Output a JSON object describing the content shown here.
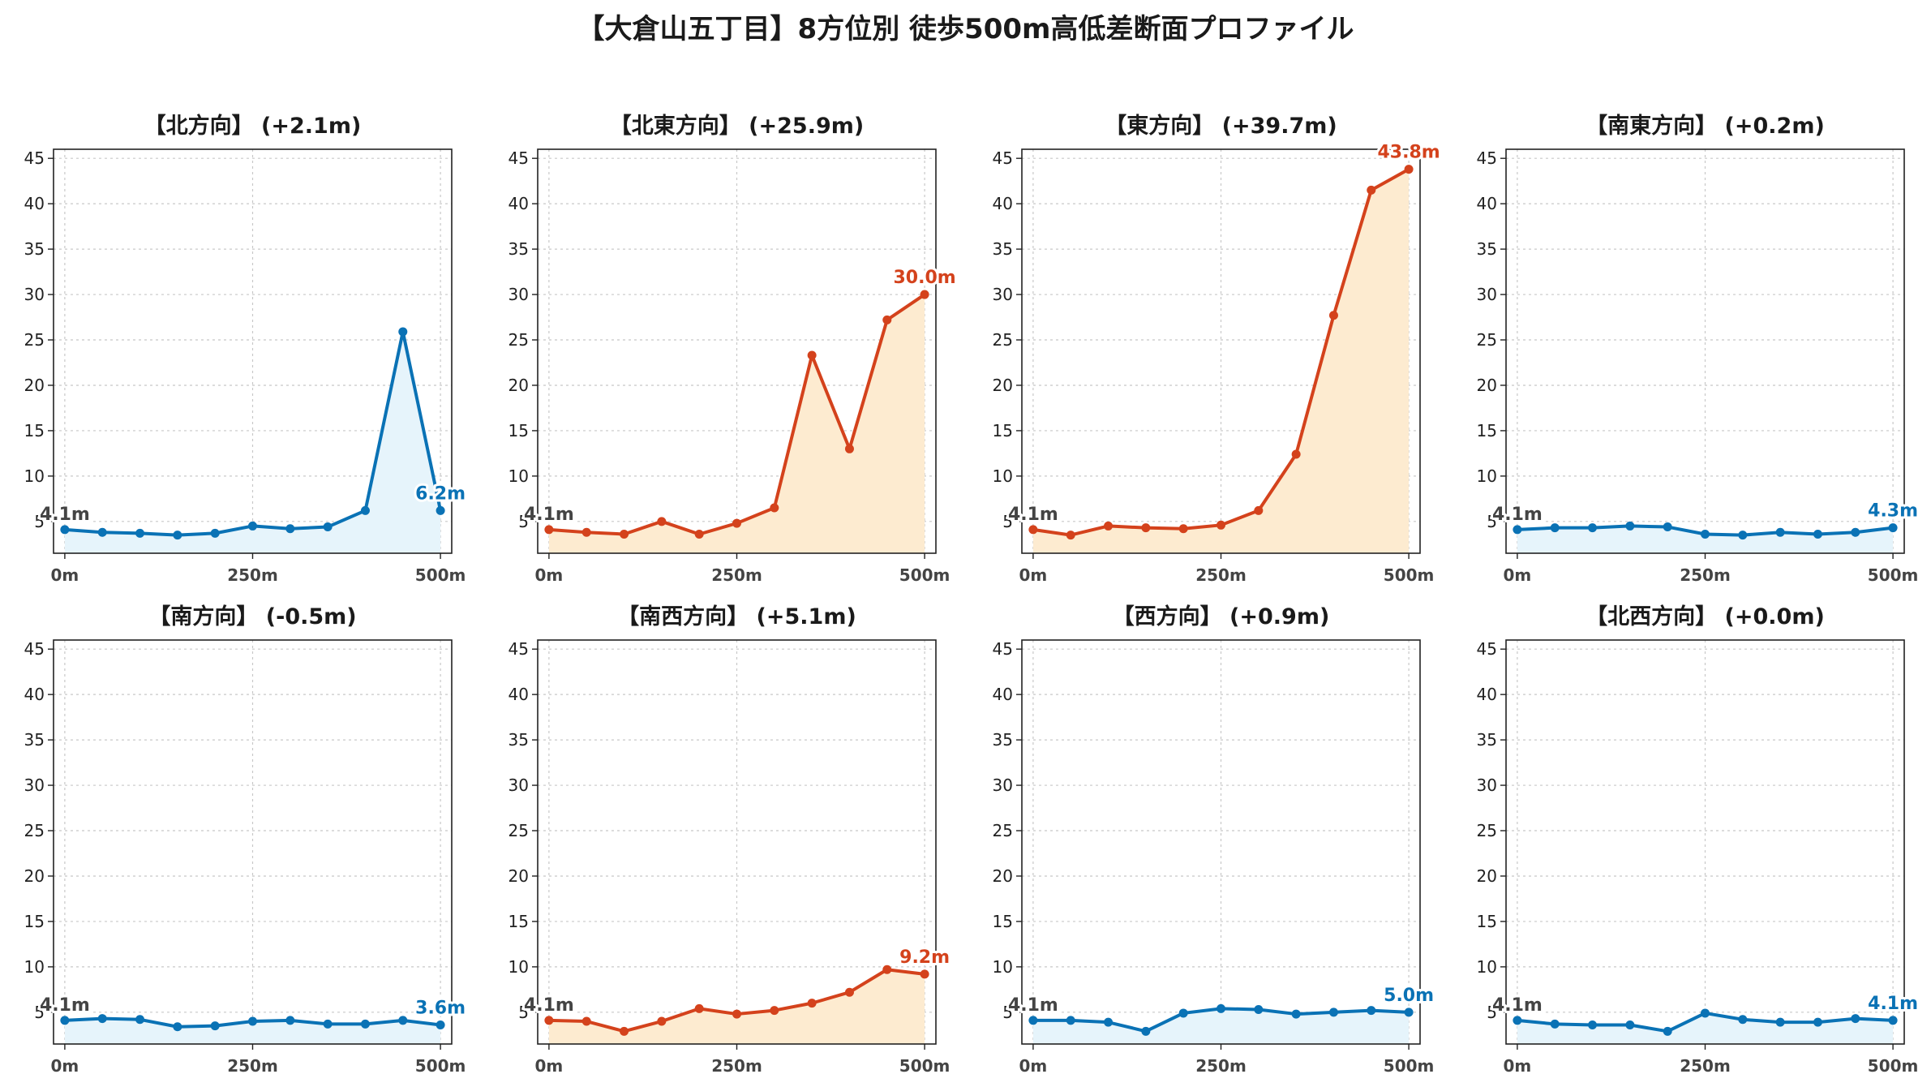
{
  "title": "【大倉山五丁目】8方位別 徒歩500m高低差断面プロファイル",
  "colors": {
    "up_line": "#d4421c",
    "up_fill": "#fdebd0",
    "flat_line": "#0a72b5",
    "flat_fill": "#e6f4fb",
    "start_label": "#444444",
    "grid": "#c8c8c8"
  },
  "chart_data": [
    {
      "type": "area",
      "title": "【北方向】 (+2.1m)",
      "x": [
        0,
        50,
        100,
        150,
        200,
        250,
        300,
        350,
        400,
        450,
        500
      ],
      "values": [
        4.1,
        3.8,
        3.7,
        3.5,
        3.7,
        4.5,
        4.2,
        4.4,
        6.2,
        25.9,
        6.2
      ],
      "xticks": [
        "0m",
        "250m",
        "500m"
      ],
      "yticks": [
        5,
        10,
        15,
        20,
        25,
        30,
        35,
        40,
        45
      ],
      "ylim": [
        1.5,
        46
      ],
      "xlim": [
        -15,
        515
      ],
      "start_label": "4.1m",
      "end_label": "6.2m",
      "trend": "flat",
      "grid": true
    },
    {
      "type": "area",
      "title": "【北東方向】 (+25.9m)",
      "x": [
        0,
        50,
        100,
        150,
        200,
        250,
        300,
        350,
        400,
        450,
        500
      ],
      "values": [
        4.1,
        3.8,
        3.6,
        5.0,
        3.6,
        4.8,
        6.5,
        23.3,
        13.0,
        27.2,
        30.0
      ],
      "xticks": [
        "0m",
        "250m",
        "500m"
      ],
      "yticks": [
        5,
        10,
        15,
        20,
        25,
        30,
        35,
        40,
        45
      ],
      "ylim": [
        1.5,
        46
      ],
      "xlim": [
        -15,
        515
      ],
      "start_label": "4.1m",
      "end_label": "30.0m",
      "trend": "up",
      "grid": true
    },
    {
      "type": "area",
      "title": "【東方向】 (+39.7m)",
      "x": [
        0,
        50,
        100,
        150,
        200,
        250,
        300,
        350,
        400,
        450,
        500
      ],
      "values": [
        4.1,
        3.5,
        4.5,
        4.3,
        4.2,
        4.6,
        6.2,
        12.4,
        27.7,
        41.5,
        43.8
      ],
      "xticks": [
        "0m",
        "250m",
        "500m"
      ],
      "yticks": [
        5,
        10,
        15,
        20,
        25,
        30,
        35,
        40,
        45
      ],
      "ylim": [
        1.5,
        46
      ],
      "xlim": [
        -15,
        515
      ],
      "start_label": "4.1m",
      "end_label": "43.8m",
      "trend": "up",
      "grid": true
    },
    {
      "type": "area",
      "title": "【南東方向】 (+0.2m)",
      "x": [
        0,
        50,
        100,
        150,
        200,
        250,
        300,
        350,
        400,
        450,
        500
      ],
      "values": [
        4.1,
        4.3,
        4.3,
        4.5,
        4.4,
        3.6,
        3.5,
        3.8,
        3.6,
        3.8,
        4.3
      ],
      "xticks": [
        "0m",
        "250m",
        "500m"
      ],
      "yticks": [
        5,
        10,
        15,
        20,
        25,
        30,
        35,
        40,
        45
      ],
      "ylim": [
        1.5,
        46
      ],
      "xlim": [
        -15,
        515
      ],
      "start_label": "4.1m",
      "end_label": "4.3m",
      "trend": "flat",
      "grid": true
    },
    {
      "type": "area",
      "title": "【南方向】 (-0.5m)",
      "x": [
        0,
        50,
        100,
        150,
        200,
        250,
        300,
        350,
        400,
        450,
        500
      ],
      "values": [
        4.1,
        4.3,
        4.2,
        3.4,
        3.5,
        4.0,
        4.1,
        3.7,
        3.7,
        4.1,
        3.6
      ],
      "xticks": [
        "0m",
        "250m",
        "500m"
      ],
      "yticks": [
        5,
        10,
        15,
        20,
        25,
        30,
        35,
        40,
        45
      ],
      "ylim": [
        1.5,
        46
      ],
      "xlim": [
        -15,
        515
      ],
      "start_label": "4.1m",
      "end_label": "3.6m",
      "trend": "flat",
      "grid": true
    },
    {
      "type": "area",
      "title": "【南西方向】 (+5.1m)",
      "x": [
        0,
        50,
        100,
        150,
        200,
        250,
        300,
        350,
        400,
        450,
        500
      ],
      "values": [
        4.1,
        4.0,
        2.9,
        4.0,
        5.4,
        4.8,
        5.2,
        6.0,
        7.2,
        9.7,
        9.2
      ],
      "xticks": [
        "0m",
        "250m",
        "500m"
      ],
      "yticks": [
        5,
        10,
        15,
        20,
        25,
        30,
        35,
        40,
        45
      ],
      "ylim": [
        1.5,
        46
      ],
      "xlim": [
        -15,
        515
      ],
      "start_label": "4.1m",
      "end_label": "9.2m",
      "trend": "up",
      "grid": true
    },
    {
      "type": "area",
      "title": "【西方向】 (+0.9m)",
      "x": [
        0,
        50,
        100,
        150,
        200,
        250,
        300,
        350,
        400,
        450,
        500
      ],
      "values": [
        4.1,
        4.1,
        3.9,
        2.9,
        4.9,
        5.4,
        5.3,
        4.8,
        5.0,
        5.2,
        5.0
      ],
      "xticks": [
        "0m",
        "250m",
        "500m"
      ],
      "yticks": [
        5,
        10,
        15,
        20,
        25,
        30,
        35,
        40,
        45
      ],
      "ylim": [
        1.5,
        46
      ],
      "xlim": [
        -15,
        515
      ],
      "start_label": "4.1m",
      "end_label": "5.0m",
      "trend": "flat",
      "grid": true
    },
    {
      "type": "area",
      "title": "【北西方向】 (+0.0m)",
      "x": [
        0,
        50,
        100,
        150,
        200,
        250,
        300,
        350,
        400,
        450,
        500
      ],
      "values": [
        4.1,
        3.7,
        3.6,
        3.6,
        2.9,
        4.9,
        4.2,
        3.9,
        3.9,
        4.3,
        4.1
      ],
      "xticks": [
        "0m",
        "250m",
        "500m"
      ],
      "yticks": [
        5,
        10,
        15,
        20,
        25,
        30,
        35,
        40,
        45
      ],
      "ylim": [
        1.5,
        46
      ],
      "xlim": [
        -15,
        515
      ],
      "start_label": "4.1m",
      "end_label": "4.1m",
      "trend": "flat",
      "grid": true
    }
  ]
}
